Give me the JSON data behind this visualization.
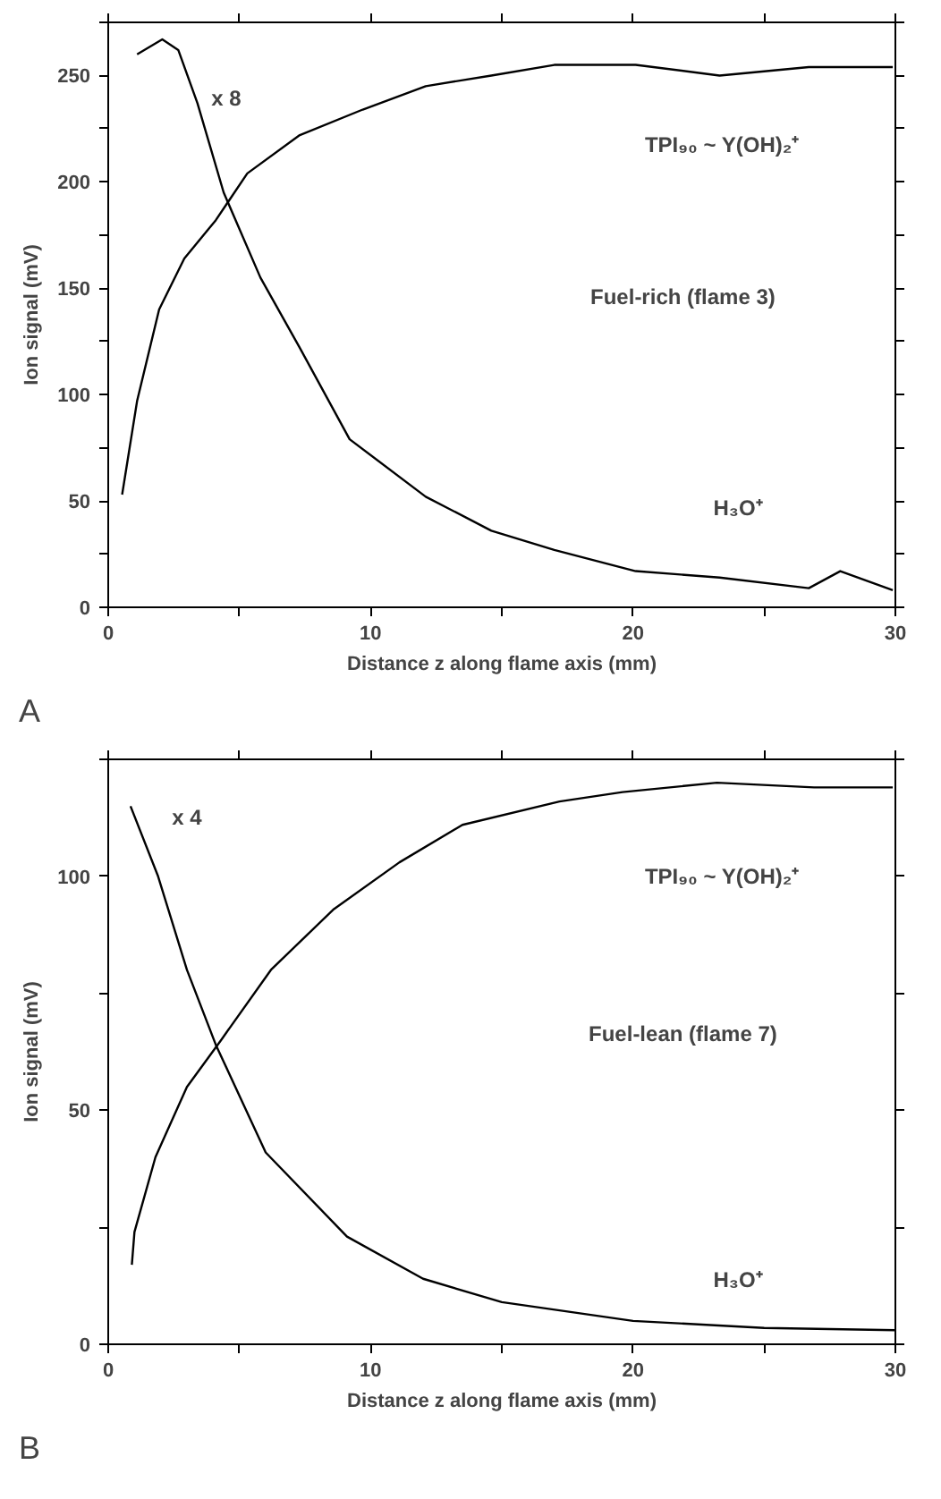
{
  "chart_data": [
    {
      "type": "line",
      "title": "A",
      "xlabel": "Distance z along flame axis (mm)",
      "ylabel": "Ion signal (mV)",
      "xlim": [
        0,
        30
      ],
      "ylim": [
        0,
        275
      ],
      "xticks": [
        0,
        {
          "value": 5,
          "label": null
        },
        10,
        {
          "value": 15,
          "label": null
        },
        20,
        {
          "value": 25,
          "label": null
        },
        30
      ],
      "yticks": [
        0,
        {
          "value": 25,
          "label": null
        },
        50,
        {
          "value": 75,
          "label": null
        },
        100,
        {
          "value": 125,
          "label": null
        },
        150,
        {
          "value": 175,
          "label": null
        },
        200,
        {
          "value": 225,
          "label": null
        },
        250,
        {
          "value": 275,
          "label": null
        }
      ],
      "series": [
        {
          "color": "#000000",
          "x": [
            0.53,
            1.1,
            1.94,
            2.9,
            4.1,
            5.3,
            7.3,
            9.7,
            12.1,
            14.6,
            17,
            20.1,
            23.3,
            26.7,
            29.9
          ],
          "values": [
            53,
            97,
            140,
            164,
            182,
            204,
            222,
            234,
            245,
            250,
            255,
            255,
            250,
            254,
            254
          ]
        },
        {
          "color": "#000000",
          "x": [
            1.1,
            2.06,
            2.67,
            3.4,
            4.4,
            5.8,
            7.3,
            9.2,
            12.1,
            14.6,
            17,
            20.1,
            23.3,
            26.7,
            27.9,
            29.9
          ],
          "values": [
            260,
            267,
            262,
            237,
            195,
            155,
            122,
            79,
            52,
            36,
            27,
            17,
            14,
            9,
            17,
            8
          ]
        }
      ],
      "annotations": [
        "x 8",
        "TPI₉₀ ~ Y(OH)₂⁺",
        "Fuel-rich (flame 3)",
        "H₃O⁺"
      ]
    },
    {
      "type": "line",
      "title": "B",
      "xlabel": "Distance z along flame axis (mm)",
      "ylabel": "Ion signal (mV)",
      "xlim": [
        0,
        30
      ],
      "ylim": [
        0,
        125
      ],
      "xticks": [
        0,
        {
          "value": 5,
          "label": null
        },
        10,
        {
          "value": 15,
          "label": null
        },
        20,
        {
          "value": 25,
          "label": null
        },
        30
      ],
      "yticks": [
        0,
        {
          "value": 25,
          "label": null
        },
        50,
        {
          "value": 75,
          "label": null
        },
        100,
        {
          "value": 125,
          "label": null
        }
      ],
      "series": [
        {
          "color": "#000000",
          "x": [
            0.9,
            1.0,
            1.8,
            3.0,
            4.3,
            6.2,
            8.6,
            11.1,
            13.5,
            17.2,
            19.6,
            23.2,
            26.9,
            29.9
          ],
          "values": [
            17,
            24,
            40,
            55,
            65,
            80,
            93,
            103,
            111,
            116,
            118,
            120,
            119,
            119
          ]
        },
        {
          "color": "#000000",
          "x": [
            0.85,
            1.9,
            3.0,
            4.1,
            6.0,
            9.1,
            12,
            15,
            20,
            25,
            30
          ],
          "values": [
            115,
            100,
            80,
            64,
            41,
            23,
            14,
            9,
            5,
            3.5,
            3
          ]
        }
      ],
      "annotations": [
        "x 4",
        "TPI₉₀ ~ Y(OH)₂⁺",
        "Fuel-lean (flame 7)",
        "H₃O⁺"
      ]
    }
  ]
}
